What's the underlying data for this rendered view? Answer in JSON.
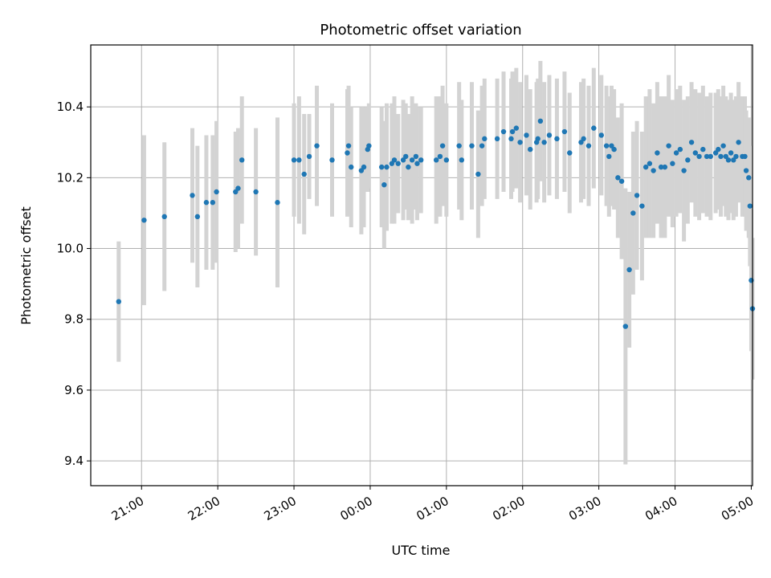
{
  "chart_data": {
    "type": "scatter",
    "title": "Photometric offset variation",
    "xlabel": "UTC time",
    "ylabel": "Photometric offset",
    "ylim": [
      9.33,
      10.575
    ],
    "xlim": [
      "20:20",
      "05:01"
    ],
    "grid": true,
    "x_tick_labels": [
      "21:00",
      "22:00",
      "23:00",
      "00:00",
      "01:00",
      "02:00",
      "03:00",
      "04:00",
      "05:00"
    ],
    "y_tick_labels": [
      "9.4",
      "9.6",
      "9.8",
      "10.0",
      "10.2",
      "10.4"
    ],
    "y_ticks": [
      9.4,
      9.6,
      9.8,
      10.0,
      10.2,
      10.4
    ],
    "colors": {
      "points": "#1f77b4",
      "error_bars": "#d3d3d3",
      "grid": "#b0b0b0"
    },
    "series": [
      {
        "x": [
          "20:42",
          "21:02",
          "21:18",
          "21:40",
          "21:44",
          "21:51",
          "21:56",
          "21:59",
          "22:14",
          "22:16",
          "22:19",
          "22:30",
          "22:47",
          "23:00",
          "23:04",
          "23:08",
          "23:12",
          "23:18",
          "23:30",
          "23:42",
          "23:43",
          "23:45",
          "23:53",
          "23:55",
          "23:58",
          "23:59",
          "00:09",
          "00:11",
          "00:13",
          "00:17",
          "00:19",
          "00:22",
          "00:26",
          "00:28",
          "00:30",
          "00:33",
          "00:36",
          "00:37",
          "00:40",
          "00:52",
          "00:55",
          "00:57",
          "01:00",
          "01:10",
          "01:12",
          "01:20",
          "01:25",
          "01:28",
          "01:30",
          "01:40",
          "01:45",
          "01:51",
          "01:52",
          "01:55",
          "01:58",
          "02:03",
          "02:06",
          "02:11",
          "02:12",
          "02:14",
          "02:17",
          "02:21",
          "02:27",
          "02:33",
          "02:37",
          "02:46",
          "02:48",
          "02:52",
          "02:56",
          "03:02",
          "03:06",
          "03:08",
          "03:10",
          "03:12",
          "03:15",
          "03:18",
          "03:21",
          "03:24",
          "03:27",
          "03:30",
          "03:34",
          "03:37",
          "03:40",
          "03:43",
          "03:46",
          "03:49",
          "03:52",
          "03:55",
          "03:58",
          "04:01",
          "04:04",
          "04:07",
          "04:10",
          "04:13",
          "04:16",
          "04:19",
          "04:22",
          "04:25",
          "04:28",
          "04:32",
          "04:34",
          "04:36",
          "04:38",
          "04:40",
          "04:42",
          "04:44",
          "04:46",
          "04:48",
          "04:50",
          "04:53",
          "04:55",
          "04:56",
          "04:58",
          "04:59",
          "05:00",
          "05:01"
        ],
        "y": [
          9.85,
          10.08,
          10.09,
          10.15,
          10.09,
          10.13,
          10.13,
          10.16,
          10.16,
          10.17,
          10.25,
          10.16,
          10.13,
          10.25,
          10.25,
          10.21,
          10.26,
          10.29,
          10.25,
          10.27,
          10.29,
          10.23,
          10.22,
          10.23,
          10.28,
          10.29,
          10.23,
          10.18,
          10.23,
          10.24,
          10.25,
          10.24,
          10.25,
          10.26,
          10.23,
          10.25,
          10.26,
          10.24,
          10.25,
          10.25,
          10.26,
          10.29,
          10.25,
          10.29,
          10.25,
          10.29,
          10.21,
          10.29,
          10.31,
          10.31,
          10.33,
          10.31,
          10.33,
          10.34,
          10.3,
          10.32,
          10.28,
          10.3,
          10.31,
          10.36,
          10.3,
          10.32,
          10.31,
          10.33,
          10.27,
          10.3,
          10.31,
          10.29,
          10.34,
          10.32,
          10.29,
          10.26,
          10.29,
          10.28,
          10.2,
          10.19,
          9.78,
          9.94,
          10.1,
          10.15,
          10.12,
          10.23,
          10.24,
          10.22,
          10.27,
          10.23,
          10.23,
          10.29,
          10.24,
          10.27,
          10.28,
          10.22,
          10.25,
          10.3,
          10.27,
          10.26,
          10.28,
          10.26,
          10.26,
          10.27,
          10.28,
          10.26,
          10.29,
          10.26,
          10.25,
          10.27,
          10.25,
          10.26,
          10.3,
          10.26,
          10.26,
          10.22,
          10.2,
          10.12,
          9.91,
          9.83
        ],
        "error": [
          0.17,
          0.24,
          0.21,
          0.19,
          0.2,
          0.19,
          0.19,
          0.2,
          0.17,
          0.17,
          0.18,
          0.18,
          0.24,
          0.16,
          0.18,
          0.17,
          0.12,
          0.17,
          0.16,
          0.18,
          0.17,
          0.17,
          0.18,
          0.17,
          0.12,
          0.12,
          0.17,
          0.18,
          0.18,
          0.17,
          0.18,
          0.14,
          0.17,
          0.15,
          0.15,
          0.18,
          0.15,
          0.16,
          0.15,
          0.18,
          0.17,
          0.17,
          0.16,
          0.18,
          0.17,
          0.18,
          0.18,
          0.17,
          0.17,
          0.17,
          0.17,
          0.17,
          0.17,
          0.17,
          0.17,
          0.17,
          0.17,
          0.17,
          0.17,
          0.17,
          0.17,
          0.17,
          0.17,
          0.17,
          0.17,
          0.17,
          0.17,
          0.17,
          0.17,
          0.17,
          0.17,
          0.17,
          0.17,
          0.17,
          0.17,
          0.22,
          0.39,
          0.22,
          0.23,
          0.21,
          0.21,
          0.2,
          0.21,
          0.19,
          0.2,
          0.2,
          0.2,
          0.2,
          0.18,
          0.18,
          0.18,
          0.2,
          0.18,
          0.17,
          0.18,
          0.18,
          0.18,
          0.17,
          0.18,
          0.17,
          0.17,
          0.17,
          0.17,
          0.17,
          0.17,
          0.17,
          0.17,
          0.17,
          0.17,
          0.17,
          0.17,
          0.17,
          0.17,
          0.17,
          0.2,
          0.2
        ]
      }
    ]
  }
}
